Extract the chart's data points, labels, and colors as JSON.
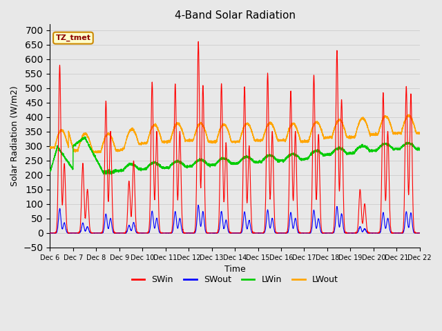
{
  "title": "4-Band Solar Radiation",
  "ylabel": "Solar Radiation (W/m2)",
  "xlabel": "Time",
  "annotation": "TZ_tmet",
  "ylim": [
    -50,
    720
  ],
  "yticks": [
    -50,
    0,
    50,
    100,
    150,
    200,
    250,
    300,
    350,
    400,
    450,
    500,
    550,
    600,
    650,
    700
  ],
  "n_days": 16,
  "start_day": 6,
  "colors": {
    "SWin": "#ff0000",
    "SWout": "#0000ff",
    "LWin": "#00cc00",
    "LWout": "#ffa500"
  },
  "bg_color": "#e8e8e8",
  "figsize": [
    6.4,
    4.8
  ],
  "dpi": 100,
  "legend_labels": [
    "SWin",
    "SWout",
    "LWin",
    "LWout"
  ],
  "swin_peaks": [
    580,
    240,
    455,
    180,
    520,
    515,
    660,
    515,
    505,
    550,
    490,
    545,
    630,
    150,
    485,
    505
  ],
  "swin_secondary": [
    240,
    150,
    350,
    250,
    350,
    350,
    510,
    310,
    300,
    350,
    350,
    340,
    460,
    100,
    350,
    480
  ],
  "lwin_base": [
    215,
    215,
    215,
    215,
    220,
    225,
    230,
    235,
    240,
    245,
    250,
    255,
    270,
    275,
    285,
    290
  ],
  "lwout_base": [
    295,
    285,
    280,
    285,
    310,
    315,
    320,
    315,
    315,
    320,
    320,
    315,
    330,
    330,
    340,
    345
  ]
}
